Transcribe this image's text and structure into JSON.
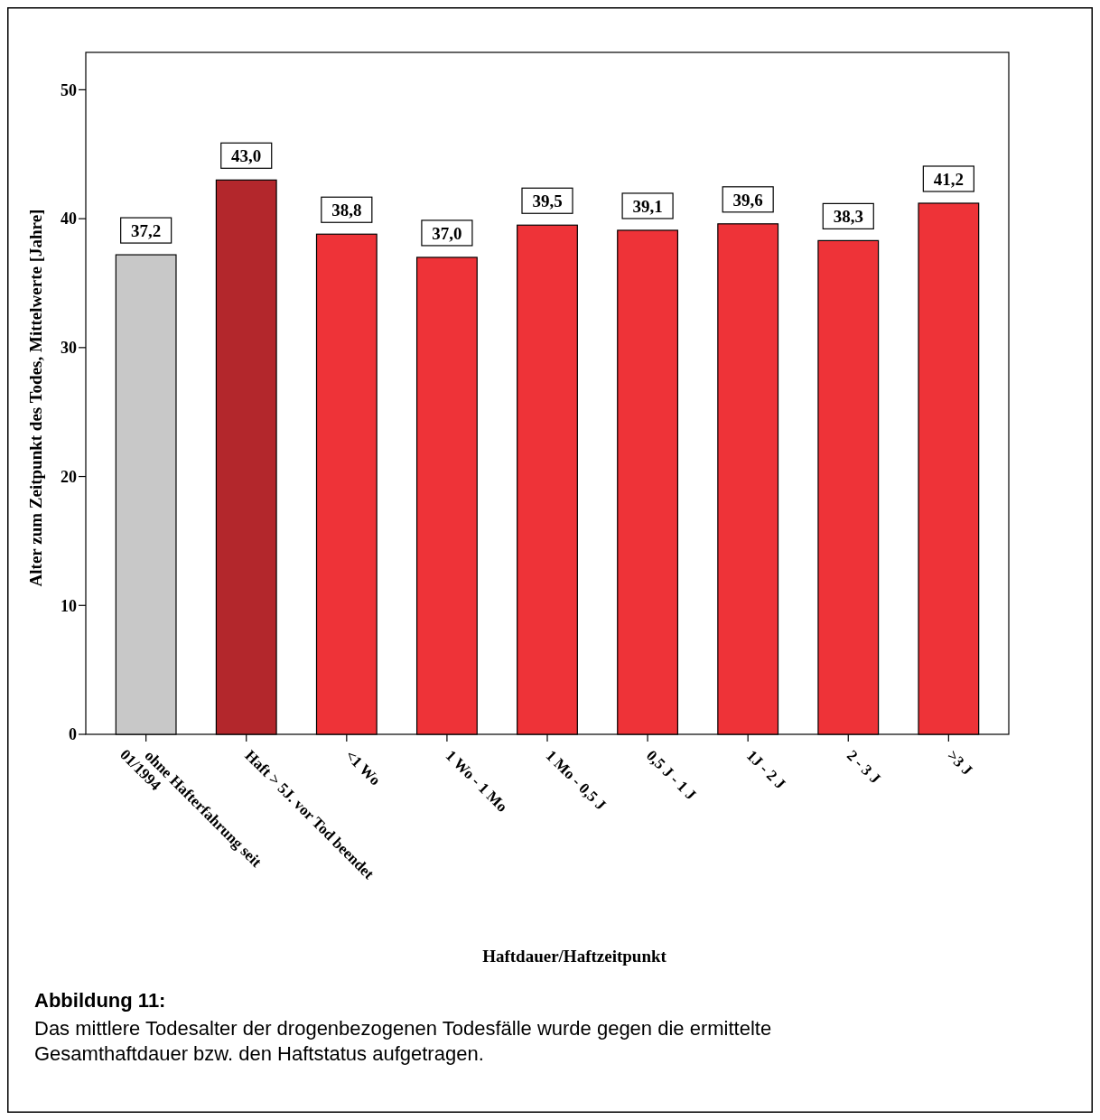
{
  "chart_data": {
    "type": "bar",
    "xlabel": "Haftdauer/Haftzeitpunkt",
    "ylabel": "Alter zum Zeitpunkt des Todes, Mittelwerte [Jahre]",
    "categories": [
      "ohne Hafterfahrung seit 01/1994",
      "Haft > 5J. vor Tod beendet",
      "<1 Wo",
      "1 Wo - 1 Mo",
      "1 Mo - 0,5 J",
      "0,5 J - 1 J",
      "1J - 2 J",
      "2 - 3 J",
      ">3 J"
    ],
    "values": [
      37.2,
      43.0,
      38.8,
      37.0,
      39.5,
      39.1,
      39.6,
      38.3,
      41.2
    ],
    "colors": [
      "#c8c8c8",
      "#b3272c",
      "#ee3338",
      "#ee3338",
      "#ee3338",
      "#ee3338",
      "#ee3338",
      "#ee3338",
      "#ee3338"
    ],
    "value_labels": [
      "37,2",
      "43,0",
      "38,8",
      "37,0",
      "39,5",
      "39,1",
      "39,6",
      "38,3",
      "41,2"
    ],
    "ylim": [
      0,
      52.9
    ],
    "yticks": [
      0,
      10,
      20,
      30,
      40,
      50
    ],
    "annotations": [
      "Abbildung 11:",
      "Das mittlere Todesalter der drogenbezogenen Todesfälle wurde gegen die ermittelte Gesamthaftdauer bzw. den Haftstatus aufgetragen."
    ]
  }
}
